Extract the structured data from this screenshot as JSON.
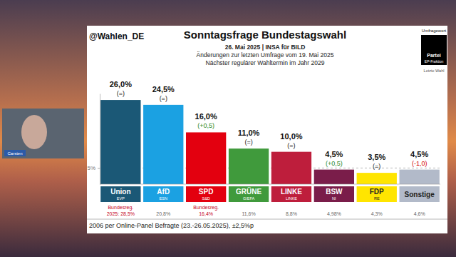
{
  "chart_data": {
    "type": "bar",
    "source": "@Wahlen_DE",
    "title": "Sonntagsfrage Bundestagswahl",
    "subtitle": [
      "26. Mai 2025 | INSA für BILD",
      "Änderungen zur letzten Umfrage vom 19. Mai 2025",
      "Nächster regulärer Wahltermin im Jahr 2029"
    ],
    "key_labels": {
      "value": "Umfragewert",
      "party": "Partei",
      "group": "EP-Fraktion",
      "last": "Letzte Wahl"
    },
    "categories": [
      "Union",
      "AfD",
      "SPD",
      "GRÜNE",
      "LINKE",
      "BSW",
      "FDP",
      "Sonstige"
    ],
    "groups": [
      "EVP",
      "ESN",
      "S&D",
      "G/EFA",
      "LINKE",
      "NI",
      "RE",
      null
    ],
    "values": [
      26.0,
      24.5,
      16.0,
      11.0,
      10.0,
      4.5,
      3.5,
      4.5
    ],
    "value_labels": [
      "26,0%",
      "24,5%",
      "16,0%",
      "11,0%",
      "10,0%",
      "4,5%",
      "3,5%",
      "4,5%"
    ],
    "changes": [
      0,
      0,
      0.5,
      0,
      0,
      0.5,
      0,
      -1.0
    ],
    "change_labels": [
      "(=)",
      "(=)",
      "(+0,5)",
      "(=)",
      "(=)",
      "(+0,5)",
      "(=)",
      "(-1,0)"
    ],
    "government": [
      true,
      false,
      true,
      false,
      false,
      false,
      false,
      false
    ],
    "government_label": "Bundesreg.",
    "last_election_labels": [
      "2025: 28,5%",
      "20,8%",
      "16,4%",
      "11,6%",
      "8,8%",
      "4,98%",
      "4,3%",
      "4,6%"
    ],
    "colors": [
      "#1b5876",
      "#1ba1e2",
      "#e3000f",
      "#409a3c",
      "#be1e3c",
      "#7a1d4a",
      "#ffe500",
      "#b2bac9"
    ],
    "ylim": [
      0,
      28
    ],
    "yticks": [
      {
        "value": 5,
        "label": "5%"
      }
    ],
    "grid": true,
    "data_labels": true,
    "footnote": "2006 per Online-Panel Befragte (23.-26.05.2025), ±2,5%p"
  },
  "video_overlay": {
    "speaker": "Carsten"
  }
}
